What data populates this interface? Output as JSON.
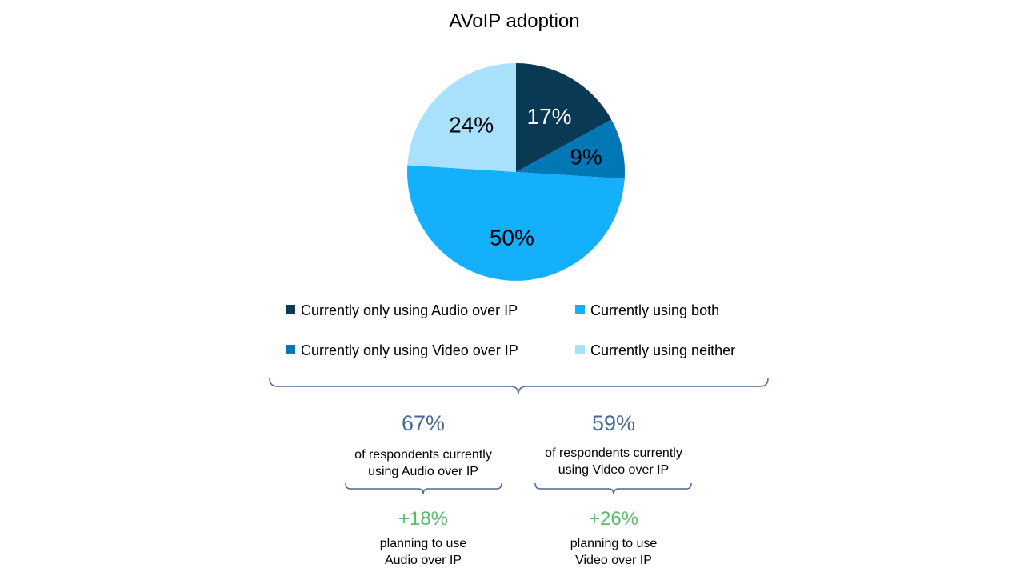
{
  "chart_data": {
    "type": "pie",
    "title": "AVoIP adoption",
    "start": "top",
    "direction": "clockwise",
    "slices": [
      {
        "label": "Currently only using Audio over IP",
        "value": 17,
        "display": "17%",
        "color": "#0a3954"
      },
      {
        "label": "Currently only using Video over IP",
        "value": 9,
        "display": "9%",
        "color": "#0277b6"
      },
      {
        "label": "Currently using both",
        "value": 50,
        "display": "50%",
        "color": "#14b0fb"
      },
      {
        "label": "Currently using neither",
        "value": 24,
        "display": "24%",
        "color": "#a9e1fd"
      }
    ],
    "legend": {
      "placement": "bottom",
      "order": [
        0,
        2,
        1,
        3
      ]
    }
  },
  "summary": {
    "accent_color": "#4a6996",
    "plan_color": "#5cb96f",
    "brace_color": "#4a6996",
    "groups": [
      {
        "value": "67%",
        "line1": "of respondents currently",
        "line2": "using Audio over IP",
        "plan_value": "+18%",
        "plan_line1": "planning to use",
        "plan_line2": "Audio over IP"
      },
      {
        "value": "59%",
        "line1": "of respondents currently",
        "line2": "using Video over IP",
        "plan_value": "+26%",
        "plan_line1": "planning to use",
        "plan_line2": "Video over IP"
      }
    ]
  }
}
